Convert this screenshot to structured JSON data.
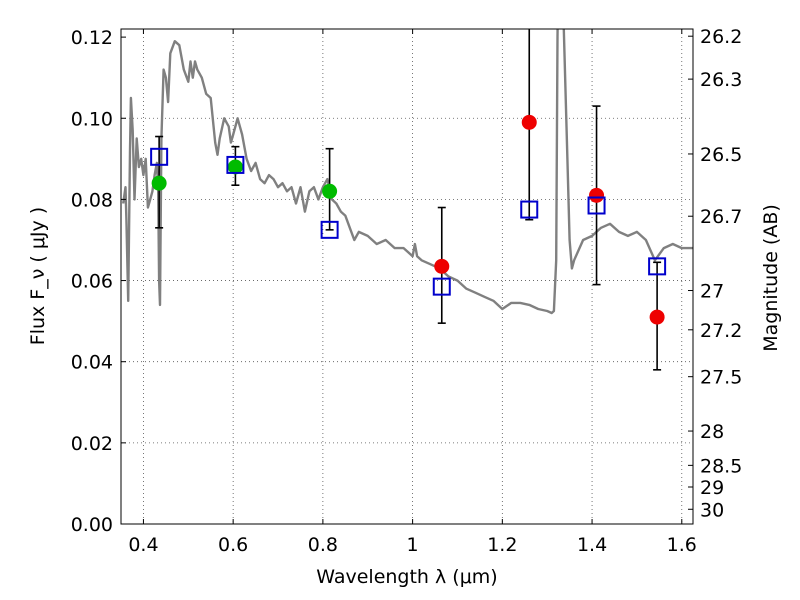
{
  "chart_data": {
    "type": "scatter",
    "xlabel": "Wavelength  λ (μm)",
    "ylabel": "Flux  F_ν  ( μJy )",
    "ylabel_right": "Magnitude (AB)",
    "xlim": [
      0.35,
      1.625
    ],
    "ylim": [
      0.0,
      0.122
    ],
    "grid": true,
    "xticks": [
      0.4,
      0.6,
      0.8,
      1.0,
      1.2,
      1.4,
      1.6
    ],
    "xtick_labels": [
      "0.4",
      "0.6",
      "0.8",
      "1",
      "1.2",
      "1.4",
      "1.6"
    ],
    "yticks": [
      0.0,
      0.02,
      0.04,
      0.06,
      0.08,
      0.1,
      0.12
    ],
    "ytick_labels": [
      "0.00",
      "0.02",
      "0.04",
      "0.06",
      "0.08",
      "0.10",
      "0.12"
    ],
    "mag_ticks": [
      26.2,
      26.3,
      26.5,
      26.7,
      27,
      27.2,
      27.5,
      28,
      28.5,
      29,
      30
    ],
    "mag_tick_labels": [
      "26.2",
      "26.3",
      "26.5",
      "26.7",
      "27",
      "27.2",
      "27.5",
      "28",
      "28.5",
      "29",
      "30"
    ],
    "colors": {
      "template": "#808080",
      "green_points": "#00bb00",
      "red_points": "#ee0000",
      "model_squares": "#0000cc",
      "errorbars": "#000000",
      "grid": "#555555"
    },
    "template_spectrum": {
      "x": [
        0.355,
        0.36,
        0.362,
        0.366,
        0.37,
        0.372,
        0.376,
        0.38,
        0.385,
        0.39,
        0.395,
        0.4,
        0.405,
        0.41,
        0.415,
        0.42,
        0.425,
        0.43,
        0.433,
        0.435,
        0.437,
        0.44,
        0.445,
        0.45,
        0.455,
        0.46,
        0.47,
        0.48,
        0.49,
        0.5,
        0.505,
        0.51,
        0.515,
        0.52,
        0.53,
        0.54,
        0.55,
        0.56,
        0.565,
        0.57,
        0.58,
        0.59,
        0.595,
        0.6,
        0.605,
        0.61,
        0.62,
        0.63,
        0.64,
        0.65,
        0.66,
        0.67,
        0.68,
        0.69,
        0.7,
        0.71,
        0.72,
        0.73,
        0.74,
        0.75,
        0.76,
        0.77,
        0.78,
        0.79,
        0.8,
        0.81,
        0.82,
        0.83,
        0.84,
        0.85,
        0.86,
        0.87,
        0.88,
        0.9,
        0.92,
        0.94,
        0.96,
        0.98,
        1.0,
        1.005,
        1.01,
        1.02,
        1.04,
        1.06,
        1.08,
        1.1,
        1.12,
        1.14,
        1.16,
        1.18,
        1.2,
        1.22,
        1.24,
        1.26,
        1.28,
        1.3,
        1.31,
        1.315,
        1.32,
        1.323,
        1.324,
        1.325,
        1.33,
        1.335,
        1.345,
        1.35,
        1.355,
        1.36,
        1.38,
        1.4,
        1.42,
        1.44,
        1.46,
        1.48,
        1.5,
        1.52,
        1.54,
        1.56,
        1.58,
        1.6,
        1.625
      ],
      "y": [
        0.079,
        0.083,
        0.075,
        0.055,
        0.092,
        0.105,
        0.097,
        0.08,
        0.095,
        0.088,
        0.09,
        0.086,
        0.09,
        0.078,
        0.08,
        0.082,
        0.086,
        0.089,
        0.082,
        0.06,
        0.054,
        0.095,
        0.112,
        0.11,
        0.104,
        0.116,
        0.119,
        0.118,
        0.112,
        0.109,
        0.114,
        0.11,
        0.114,
        0.112,
        0.11,
        0.106,
        0.105,
        0.094,
        0.091,
        0.095,
        0.1,
        0.098,
        0.094,
        0.096,
        0.098,
        0.1,
        0.096,
        0.09,
        0.087,
        0.089,
        0.085,
        0.084,
        0.086,
        0.085,
        0.083,
        0.084,
        0.082,
        0.083,
        0.079,
        0.083,
        0.077,
        0.082,
        0.083,
        0.08,
        0.083,
        0.085,
        0.08,
        0.079,
        0.077,
        0.076,
        0.073,
        0.07,
        0.072,
        0.071,
        0.069,
        0.07,
        0.068,
        0.068,
        0.066,
        0.069,
        0.066,
        0.065,
        0.064,
        0.063,
        0.061,
        0.06,
        0.058,
        0.057,
        0.056,
        0.055,
        0.053,
        0.0545,
        0.0545,
        0.054,
        0.053,
        0.0525,
        0.052,
        0.0525,
        0.065,
        0.12,
        0.13,
        0.13,
        0.13,
        0.13,
        0.09,
        0.07,
        0.063,
        0.065,
        0.07,
        0.071,
        0.073,
        0.074,
        0.072,
        0.071,
        0.072,
        0.07,
        0.065,
        0.068,
        0.069,
        0.068,
        0.068
      ]
    },
    "green_points": [
      {
        "x": 0.435,
        "y": 0.084
      },
      {
        "x": 0.605,
        "y": 0.088
      },
      {
        "x": 0.815,
        "y": 0.082
      }
    ],
    "red_points": [
      {
        "x": 1.065,
        "y": 0.0635
      },
      {
        "x": 1.26,
        "y": 0.099
      },
      {
        "x": 1.41,
        "y": 0.081
      },
      {
        "x": 1.545,
        "y": 0.051
      }
    ],
    "model_squares": [
      {
        "x": 0.435,
        "y": 0.0905
      },
      {
        "x": 0.605,
        "y": 0.0885
      },
      {
        "x": 0.815,
        "y": 0.0725
      },
      {
        "x": 1.065,
        "y": 0.0585
      },
      {
        "x": 1.26,
        "y": 0.0775
      },
      {
        "x": 1.41,
        "y": 0.0785
      },
      {
        "x": 1.545,
        "y": 0.0635
      }
    ],
    "errorbars": [
      {
        "x": 0.435,
        "low": 0.073,
        "high": 0.0955
      },
      {
        "x": 0.605,
        "low": 0.0835,
        "high": 0.093
      },
      {
        "x": 0.815,
        "low": 0.0725,
        "high": 0.0925
      },
      {
        "x": 1.065,
        "low": 0.0495,
        "high": 0.078
      },
      {
        "x": 1.26,
        "low": 0.075,
        "high": 0.123
      },
      {
        "x": 1.41,
        "low": 0.059,
        "high": 0.103
      },
      {
        "x": 1.545,
        "low": 0.038,
        "high": 0.0645
      }
    ]
  }
}
